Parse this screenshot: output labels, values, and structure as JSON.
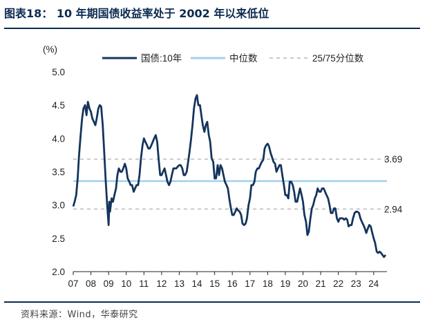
{
  "title": "图表18： 10 年期国债收益率处于 2002 年以来低位",
  "source": "资料来源：Wind，华泰研究",
  "colors": {
    "series": "#14345c",
    "median": "#9fcfee",
    "quartile": "#a6a6a6",
    "rule": "#0b2a4f"
  },
  "chart_data": {
    "type": "line",
    "ylabel": "(%)",
    "ylim": [
      2.0,
      5.0
    ],
    "yticks": [
      "5.0",
      "4.5",
      "4.0",
      "3.5",
      "3.0",
      "2.5",
      "2.0"
    ],
    "xlim": [
      2007.0,
      2024.75
    ],
    "xtick_labels": [
      "07",
      "08",
      "09",
      "10",
      "11",
      "12",
      "13",
      "14",
      "15",
      "16",
      "17",
      "18",
      "19",
      "20",
      "21",
      "22",
      "23",
      "24"
    ],
    "legend": [
      "国债:10年",
      "中位数",
      "25/75分位数"
    ],
    "reference_lines": [
      {
        "name": "中位数",
        "value": 3.36,
        "style": "solid"
      },
      {
        "name": "75分位数",
        "value": 3.69,
        "style": "dashed",
        "label": "3.69"
      },
      {
        "name": "25分位数",
        "value": 2.94,
        "style": "dashed",
        "label": "2.94"
      }
    ],
    "series": [
      {
        "name": "国债:10年",
        "points": [
          [
            2007.0,
            2.98
          ],
          [
            2007.08,
            3.05
          ],
          [
            2007.17,
            3.15
          ],
          [
            2007.25,
            3.4
          ],
          [
            2007.33,
            3.75
          ],
          [
            2007.42,
            4.05
          ],
          [
            2007.5,
            4.3
          ],
          [
            2007.58,
            4.45
          ],
          [
            2007.67,
            4.5
          ],
          [
            2007.75,
            4.35
          ],
          [
            2007.83,
            4.55
          ],
          [
            2007.92,
            4.45
          ],
          [
            2008.0,
            4.4
          ],
          [
            2008.08,
            4.3
          ],
          [
            2008.17,
            4.25
          ],
          [
            2008.25,
            4.2
          ],
          [
            2008.33,
            4.3
          ],
          [
            2008.42,
            4.45
          ],
          [
            2008.5,
            4.5
          ],
          [
            2008.58,
            4.48
          ],
          [
            2008.67,
            4.2
          ],
          [
            2008.75,
            3.8
          ],
          [
            2008.83,
            3.4
          ],
          [
            2008.92,
            3.0
          ],
          [
            2009.0,
            2.7
          ],
          [
            2009.04,
            3.05
          ],
          [
            2009.08,
            2.9
          ],
          [
            2009.17,
            3.1
          ],
          [
            2009.25,
            3.05
          ],
          [
            2009.33,
            3.15
          ],
          [
            2009.42,
            3.25
          ],
          [
            2009.5,
            3.45
          ],
          [
            2009.58,
            3.55
          ],
          [
            2009.67,
            3.5
          ],
          [
            2009.75,
            3.5
          ],
          [
            2009.83,
            3.55
          ],
          [
            2009.92,
            3.62
          ],
          [
            2010.0,
            3.55
          ],
          [
            2010.08,
            3.4
          ],
          [
            2010.17,
            3.35
          ],
          [
            2010.25,
            3.3
          ],
          [
            2010.33,
            3.3
          ],
          [
            2010.42,
            3.2
          ],
          [
            2010.5,
            3.25
          ],
          [
            2010.58,
            3.3
          ],
          [
            2010.67,
            3.3
          ],
          [
            2010.75,
            3.45
          ],
          [
            2010.83,
            3.7
          ],
          [
            2010.92,
            3.9
          ],
          [
            2011.0,
            4.0
          ],
          [
            2011.08,
            3.95
          ],
          [
            2011.17,
            3.9
          ],
          [
            2011.25,
            3.85
          ],
          [
            2011.33,
            3.85
          ],
          [
            2011.42,
            3.9
          ],
          [
            2011.5,
            3.95
          ],
          [
            2011.58,
            4.0
          ],
          [
            2011.67,
            4.05
          ],
          [
            2011.75,
            3.95
          ],
          [
            2011.83,
            3.7
          ],
          [
            2011.92,
            3.45
          ],
          [
            2012.0,
            3.45
          ],
          [
            2012.08,
            3.5
          ],
          [
            2012.17,
            3.55
          ],
          [
            2012.25,
            3.45
          ],
          [
            2012.33,
            3.35
          ],
          [
            2012.42,
            3.3
          ],
          [
            2012.5,
            3.35
          ],
          [
            2012.58,
            3.45
          ],
          [
            2012.67,
            3.55
          ],
          [
            2012.75,
            3.55
          ],
          [
            2012.83,
            3.55
          ],
          [
            2012.92,
            3.58
          ],
          [
            2013.0,
            3.6
          ],
          [
            2013.08,
            3.6
          ],
          [
            2013.17,
            3.55
          ],
          [
            2013.25,
            3.45
          ],
          [
            2013.33,
            3.45
          ],
          [
            2013.42,
            3.5
          ],
          [
            2013.5,
            3.65
          ],
          [
            2013.58,
            3.8
          ],
          [
            2013.67,
            4.0
          ],
          [
            2013.75,
            4.2
          ],
          [
            2013.83,
            4.45
          ],
          [
            2013.92,
            4.6
          ],
          [
            2014.0,
            4.65
          ],
          [
            2014.08,
            4.5
          ],
          [
            2014.17,
            4.5
          ],
          [
            2014.25,
            4.35
          ],
          [
            2014.33,
            4.2
          ],
          [
            2014.42,
            4.1
          ],
          [
            2014.5,
            4.2
          ],
          [
            2014.58,
            4.25
          ],
          [
            2014.67,
            4.05
          ],
          [
            2014.75,
            3.95
          ],
          [
            2014.83,
            3.7
          ],
          [
            2014.92,
            3.65
          ],
          [
            2015.0,
            3.4
          ],
          [
            2015.08,
            3.4
          ],
          [
            2015.17,
            3.6
          ],
          [
            2015.25,
            3.45
          ],
          [
            2015.33,
            3.6
          ],
          [
            2015.42,
            3.55
          ],
          [
            2015.5,
            3.45
          ],
          [
            2015.58,
            3.35
          ],
          [
            2015.67,
            3.3
          ],
          [
            2015.75,
            3.25
          ],
          [
            2015.83,
            3.1
          ],
          [
            2015.92,
            2.95
          ],
          [
            2016.0,
            2.85
          ],
          [
            2016.08,
            2.85
          ],
          [
            2016.17,
            2.9
          ],
          [
            2016.25,
            2.95
          ],
          [
            2016.33,
            2.92
          ],
          [
            2016.42,
            2.9
          ],
          [
            2016.5,
            2.85
          ],
          [
            2016.58,
            2.72
          ],
          [
            2016.67,
            2.7
          ],
          [
            2016.75,
            2.72
          ],
          [
            2016.83,
            2.8
          ],
          [
            2016.92,
            3.0
          ],
          [
            2017.0,
            3.1
          ],
          [
            2017.08,
            3.3
          ],
          [
            2017.17,
            3.3
          ],
          [
            2017.25,
            3.35
          ],
          [
            2017.33,
            3.5
          ],
          [
            2017.42,
            3.55
          ],
          [
            2017.5,
            3.55
          ],
          [
            2017.58,
            3.6
          ],
          [
            2017.67,
            3.65
          ],
          [
            2017.75,
            3.68
          ],
          [
            2017.83,
            3.85
          ],
          [
            2017.92,
            3.9
          ],
          [
            2018.0,
            3.92
          ],
          [
            2018.08,
            3.88
          ],
          [
            2018.17,
            3.78
          ],
          [
            2018.25,
            3.72
          ],
          [
            2018.33,
            3.65
          ],
          [
            2018.42,
            3.62
          ],
          [
            2018.5,
            3.5
          ],
          [
            2018.58,
            3.55
          ],
          [
            2018.67,
            3.6
          ],
          [
            2018.75,
            3.6
          ],
          [
            2018.83,
            3.45
          ],
          [
            2018.92,
            3.3
          ],
          [
            2019.0,
            3.15
          ],
          [
            2019.08,
            3.15
          ],
          [
            2019.17,
            3.1
          ],
          [
            2019.25,
            3.35
          ],
          [
            2019.33,
            3.35
          ],
          [
            2019.42,
            3.3
          ],
          [
            2019.5,
            3.2
          ],
          [
            2019.58,
            3.05
          ],
          [
            2019.67,
            3.05
          ],
          [
            2019.75,
            3.15
          ],
          [
            2019.83,
            3.25
          ],
          [
            2019.92,
            3.15
          ],
          [
            2020.0,
            3.05
          ],
          [
            2020.08,
            2.85
          ],
          [
            2020.17,
            2.75
          ],
          [
            2020.25,
            2.55
          ],
          [
            2020.33,
            2.6
          ],
          [
            2020.42,
            2.8
          ],
          [
            2020.5,
            2.95
          ],
          [
            2020.58,
            3.0
          ],
          [
            2020.67,
            3.1
          ],
          [
            2020.75,
            3.15
          ],
          [
            2020.83,
            3.25
          ],
          [
            2020.92,
            3.2
          ],
          [
            2021.0,
            3.2
          ],
          [
            2021.08,
            3.25
          ],
          [
            2021.17,
            3.25
          ],
          [
            2021.25,
            3.2
          ],
          [
            2021.33,
            3.15
          ],
          [
            2021.42,
            3.1
          ],
          [
            2021.5,
            3.0
          ],
          [
            2021.58,
            2.88
          ],
          [
            2021.67,
            2.88
          ],
          [
            2021.75,
            2.95
          ],
          [
            2021.83,
            2.95
          ],
          [
            2021.92,
            2.8
          ],
          [
            2022.0,
            2.75
          ],
          [
            2022.08,
            2.8
          ],
          [
            2022.17,
            2.8
          ],
          [
            2022.25,
            2.8
          ],
          [
            2022.33,
            2.78
          ],
          [
            2022.42,
            2.8
          ],
          [
            2022.5,
            2.78
          ],
          [
            2022.58,
            2.68
          ],
          [
            2022.67,
            2.7
          ],
          [
            2022.75,
            2.7
          ],
          [
            2022.83,
            2.8
          ],
          [
            2022.92,
            2.88
          ],
          [
            2023.0,
            2.9
          ],
          [
            2023.08,
            2.9
          ],
          [
            2023.17,
            2.88
          ],
          [
            2023.25,
            2.8
          ],
          [
            2023.33,
            2.75
          ],
          [
            2023.42,
            2.7
          ],
          [
            2023.5,
            2.65
          ],
          [
            2023.58,
            2.58
          ],
          [
            2023.67,
            2.65
          ],
          [
            2023.75,
            2.7
          ],
          [
            2023.83,
            2.68
          ],
          [
            2023.92,
            2.58
          ],
          [
            2024.0,
            2.5
          ],
          [
            2024.08,
            2.43
          ],
          [
            2024.17,
            2.3
          ],
          [
            2024.25,
            2.28
          ],
          [
            2024.33,
            2.3
          ],
          [
            2024.42,
            2.28
          ],
          [
            2024.5,
            2.25
          ],
          [
            2024.58,
            2.22
          ],
          [
            2024.67,
            2.25
          ]
        ]
      }
    ]
  }
}
